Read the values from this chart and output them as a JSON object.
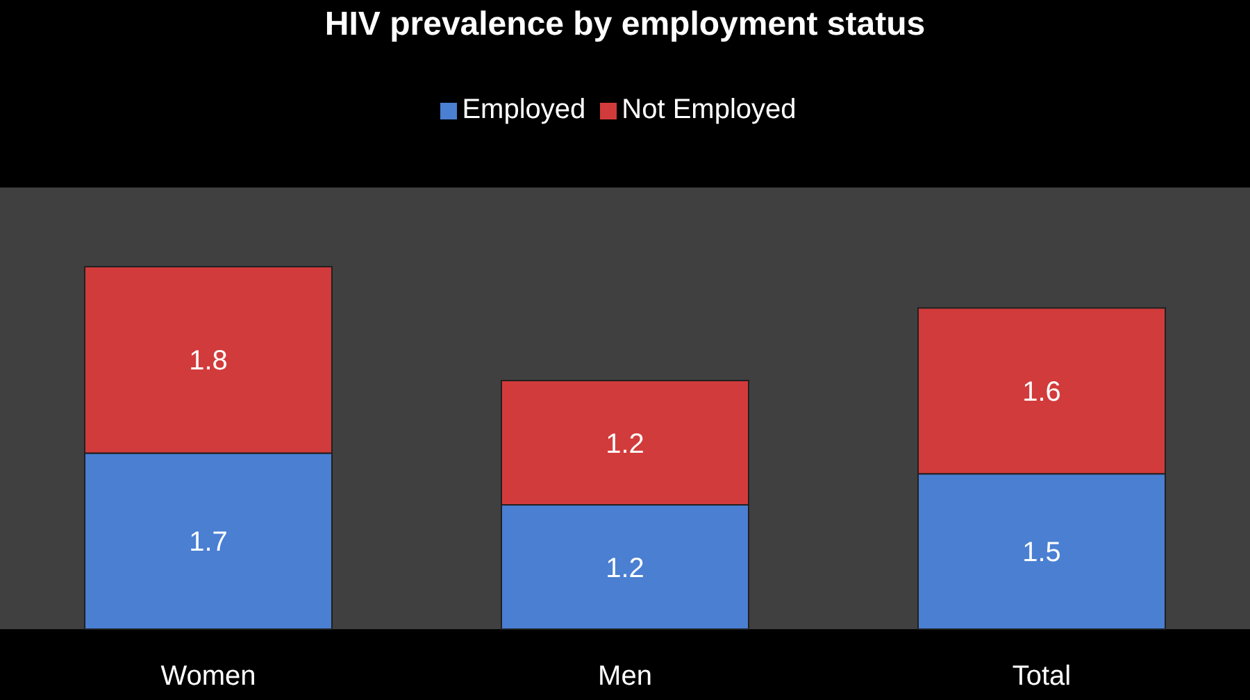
{
  "chart_data": {
    "type": "bar",
    "title": "HIV prevalence by employment status",
    "categories": [
      "Women",
      "Men",
      "Total"
    ],
    "stacked": true,
    "data_labels": true,
    "legend": "top",
    "grid": false,
    "series": [
      {
        "name": "Employed",
        "color": "#4a7fd2",
        "values": [
          1.7,
          1.2,
          1.5
        ]
      },
      {
        "name": "Not Employed",
        "color": "#d23b3b",
        "values": [
          1.8,
          1.2,
          1.6
        ]
      }
    ]
  }
}
